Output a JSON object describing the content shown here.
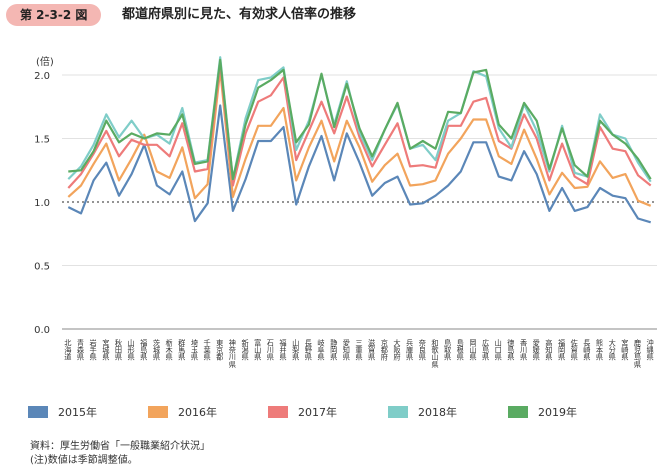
{
  "header": {
    "figure_no": "第 2-3-2 図",
    "title": "都道府県別に見た、有効求人倍率の推移"
  },
  "source": {
    "line1": "資料：厚生労働省「一般職業紹介状況」",
    "line2": "(注)数値は季節調整値。"
  },
  "colors": {
    "s2015": "#5b87b8",
    "s2016": "#f2a45c",
    "s2017": "#ee7b7a",
    "s2018": "#7fcdc8",
    "s2019": "#5aab62",
    "grid": "#d9d9d9",
    "refline": "#555555"
  },
  "chart_data": {
    "type": "line",
    "ylabel": "(倍)",
    "ylim": [
      0,
      2.0
    ],
    "yticks": [
      "0.0",
      "0.5",
      "1.0",
      "1.5",
      "2.0"
    ],
    "reference_line": 1.0,
    "grid": true,
    "legend_position": "bottom",
    "categories": [
      "北海道",
      "青森県",
      "岩手県",
      "宮城県",
      "秋田県",
      "山形県",
      "福島県",
      "茨城県",
      "栃木県",
      "群馬県",
      "埼玉県",
      "千葉県",
      "東京都",
      "神奈川県",
      "新潟県",
      "富山県",
      "石川県",
      "福井県",
      "山梨県",
      "長野県",
      "岐阜県",
      "静岡県",
      "愛知県",
      "三重県",
      "滋賀県",
      "京都府",
      "大阪府",
      "兵庫県",
      "奈良県",
      "和歌山県",
      "鳥取県",
      "島根県",
      "岡山県",
      "広島県",
      "山口県",
      "徳島県",
      "香川県",
      "愛媛県",
      "高知県",
      "福岡県",
      "佐賀県",
      "長崎県",
      "熊本県",
      "大分県",
      "宮崎県",
      "鹿児島県",
      "沖縄県"
    ],
    "series": [
      {
        "name": "2015年",
        "color_key": "s2015",
        "values": [
          0.96,
          0.91,
          1.17,
          1.31,
          1.05,
          1.22,
          1.45,
          1.13,
          1.06,
          1.24,
          0.85,
          0.99,
          1.76,
          0.93,
          1.18,
          1.48,
          1.48,
          1.59,
          0.98,
          1.28,
          1.52,
          1.17,
          1.54,
          1.31,
          1.05,
          1.15,
          1.2,
          0.98,
          0.99,
          1.05,
          1.13,
          1.24,
          1.47,
          1.47,
          1.2,
          1.17,
          1.4,
          1.22,
          0.93,
          1.11,
          0.93,
          0.96,
          1.11,
          1.05,
          1.03,
          0.87,
          0.84
        ]
      },
      {
        "name": "2016年",
        "color_key": "s2016",
        "values": [
          1.04,
          1.13,
          1.3,
          1.46,
          1.17,
          1.34,
          1.53,
          1.24,
          1.19,
          1.43,
          1.03,
          1.14,
          2.04,
          1.04,
          1.34,
          1.6,
          1.6,
          1.74,
          1.17,
          1.43,
          1.64,
          1.32,
          1.64,
          1.43,
          1.16,
          1.29,
          1.38,
          1.13,
          1.14,
          1.17,
          1.38,
          1.5,
          1.65,
          1.65,
          1.36,
          1.3,
          1.57,
          1.34,
          1.06,
          1.23,
          1.11,
          1.12,
          1.32,
          1.19,
          1.22,
          1.01,
          0.97
        ]
      },
      {
        "name": "2017年",
        "color_key": "s2017",
        "values": [
          1.11,
          1.22,
          1.38,
          1.56,
          1.36,
          1.49,
          1.45,
          1.45,
          1.36,
          1.62,
          1.24,
          1.26,
          2.08,
          1.13,
          1.54,
          1.79,
          1.84,
          1.98,
          1.33,
          1.56,
          1.79,
          1.54,
          1.83,
          1.51,
          1.28,
          1.45,
          1.62,
          1.28,
          1.29,
          1.27,
          1.6,
          1.6,
          1.79,
          1.82,
          1.48,
          1.42,
          1.69,
          1.5,
          1.17,
          1.46,
          1.2,
          1.14,
          1.59,
          1.42,
          1.4,
          1.21,
          1.13
        ]
      },
      {
        "name": "2018年",
        "color_key": "s2018",
        "values": [
          1.18,
          1.28,
          1.45,
          1.69,
          1.51,
          1.64,
          1.5,
          1.53,
          1.46,
          1.74,
          1.31,
          1.33,
          2.14,
          1.18,
          1.66,
          1.96,
          1.98,
          2.06,
          1.41,
          1.64,
          2.0,
          1.61,
          1.95,
          1.55,
          1.33,
          1.57,
          1.77,
          1.42,
          1.45,
          1.33,
          1.64,
          1.7,
          2.03,
          1.99,
          1.58,
          1.43,
          1.77,
          1.56,
          1.24,
          1.6,
          1.23,
          1.2,
          1.69,
          1.53,
          1.5,
          1.31,
          1.16
        ]
      },
      {
        "name": "2019年",
        "color_key": "s2019",
        "values": [
          1.24,
          1.25,
          1.4,
          1.64,
          1.47,
          1.54,
          1.5,
          1.54,
          1.53,
          1.69,
          1.3,
          1.32,
          2.12,
          1.18,
          1.61,
          1.9,
          1.96,
          2.04,
          1.47,
          1.61,
          2.01,
          1.59,
          1.93,
          1.58,
          1.36,
          1.57,
          1.78,
          1.42,
          1.48,
          1.42,
          1.71,
          1.7,
          2.02,
          2.04,
          1.61,
          1.5,
          1.78,
          1.64,
          1.26,
          1.58,
          1.29,
          1.2,
          1.64,
          1.53,
          1.46,
          1.34,
          1.18
        ]
      }
    ]
  }
}
